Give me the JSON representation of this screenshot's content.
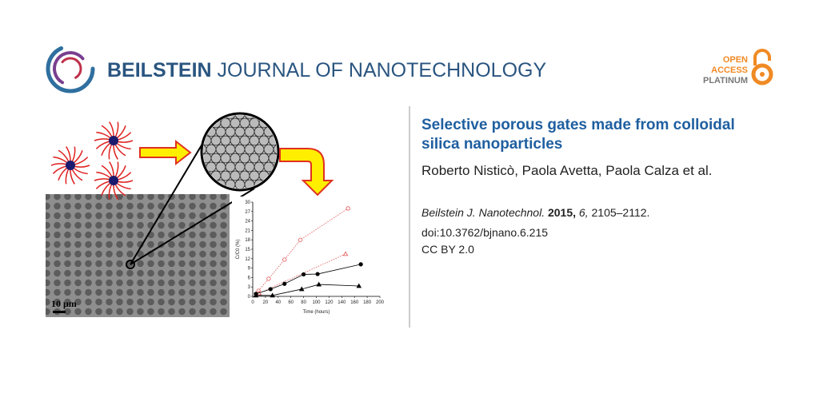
{
  "header": {
    "publisher": "BEILSTEIN",
    "journal": "JOURNAL OF NANOTECHNOLOGY",
    "badge": [
      "OPEN",
      "ACCESS",
      "PLATINUM"
    ]
  },
  "article": {
    "title_lines": [
      "Selective porous gates made from colloidal",
      "silica nanoparticles"
    ],
    "authors": "Roberto Nisticò, Paola Avetta, Paola Calza et al.",
    "journal_abbrev": "Beilstein J. Nanotechnol.",
    "year": "2015,",
    "volume": "6,",
    "pages": "2105–2112.",
    "doi": "doi:10.3762/bjnano.6.215",
    "license": "CC BY 2.0"
  },
  "graphic": {
    "scale_bar": "10 μm"
  },
  "chart_data": {
    "type": "line",
    "x_label": "Time (hours)",
    "y_label": "C/C0 (%)",
    "xlim": [
      0,
      200
    ],
    "xticks": [
      0,
      20,
      40,
      60,
      80,
      100,
      120,
      140,
      160,
      180,
      200
    ],
    "ylim": [
      0,
      30
    ],
    "yticks": [
      0,
      3,
      6,
      9,
      12,
      15,
      18,
      21,
      24,
      27,
      30
    ],
    "series": [
      {
        "x": [
          9,
          25,
          50,
          75,
          150
        ],
        "values": [
          1.8,
          5.6,
          11.7,
          18,
          28
        ],
        "color": "#e05050",
        "marker": "open-circle",
        "line": "dotted"
      },
      {
        "x": [
          10,
          146
        ],
        "values": [
          1,
          13.5
        ],
        "color": "#e05050",
        "marker": "open-triangle",
        "line": "dotted"
      },
      {
        "x": [
          5,
          28,
          50,
          80,
          102,
          170
        ],
        "values": [
          0.8,
          2.3,
          4,
          7,
          7.1,
          10.2
        ],
        "color": "#000000",
        "marker": "filled-circle",
        "line": "solid"
      },
      {
        "x": [
          5,
          31,
          77,
          104,
          167
        ],
        "values": [
          0.3,
          0.3,
          2.3,
          3.8,
          3.3
        ],
        "color": "#000000",
        "marker": "filled-triangle",
        "line": "solid"
      }
    ]
  }
}
